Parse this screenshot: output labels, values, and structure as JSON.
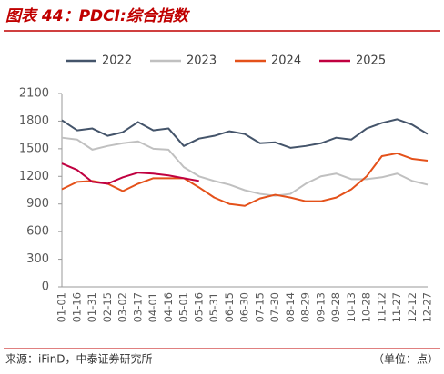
{
  "header": {
    "title": "图表 44：PDCI:综合指数"
  },
  "chart_data": {
    "type": "line",
    "categories": [
      "01-01",
      "01-16",
      "01-31",
      "02-15",
      "03-02",
      "03-17",
      "04-01",
      "04-16",
      "05-01",
      "05-16",
      "05-31",
      "06-15",
      "06-30",
      "07-15",
      "07-30",
      "08-14",
      "08-29",
      "09-13",
      "09-28",
      "10-13",
      "10-28",
      "11-12",
      "11-27",
      "12-12",
      "12-27"
    ],
    "ylim": [
      0,
      2100
    ],
    "yticks": [
      0,
      300,
      600,
      900,
      1200,
      1500,
      1800,
      2100
    ],
    "grid": false,
    "legend": "top",
    "series": [
      {
        "name": "2022",
        "color": "#44546a",
        "values": [
          1810,
          1700,
          1720,
          1640,
          1680,
          1790,
          1700,
          1720,
          1530,
          1610,
          1640,
          1690,
          1660,
          1560,
          1570,
          1510,
          1530,
          1560,
          1620,
          1600,
          1720,
          1780,
          1820,
          1760,
          1660
        ]
      },
      {
        "name": "2023",
        "color": "#c0c0c0",
        "values": [
          1620,
          1600,
          1490,
          1530,
          1560,
          1580,
          1500,
          1490,
          1300,
          1200,
          1150,
          1110,
          1050,
          1010,
          990,
          1010,
          1120,
          1200,
          1230,
          1170,
          1170,
          1190,
          1230,
          1150,
          1110
        ]
      },
      {
        "name": "2024",
        "color": "#e4511a",
        "values": [
          1060,
          1140,
          1150,
          1120,
          1040,
          1120,
          1180,
          1180,
          1180,
          1080,
          970,
          900,
          880,
          960,
          1000,
          970,
          930,
          930,
          970,
          1060,
          1200,
          1420,
          1450,
          1390,
          1370
        ]
      },
      {
        "name": "2025",
        "color": "#c00040",
        "values": [
          1340,
          1270,
          1140,
          1120,
          1190,
          1240,
          1230,
          1210,
          1180,
          1150,
          null,
          null,
          null,
          null,
          null,
          null,
          null,
          null,
          null,
          null,
          null,
          null,
          null,
          null,
          null
        ]
      }
    ]
  },
  "footer": {
    "source": "来源：iFinD，中泰证券研究所",
    "unit": "（单位：点）"
  }
}
